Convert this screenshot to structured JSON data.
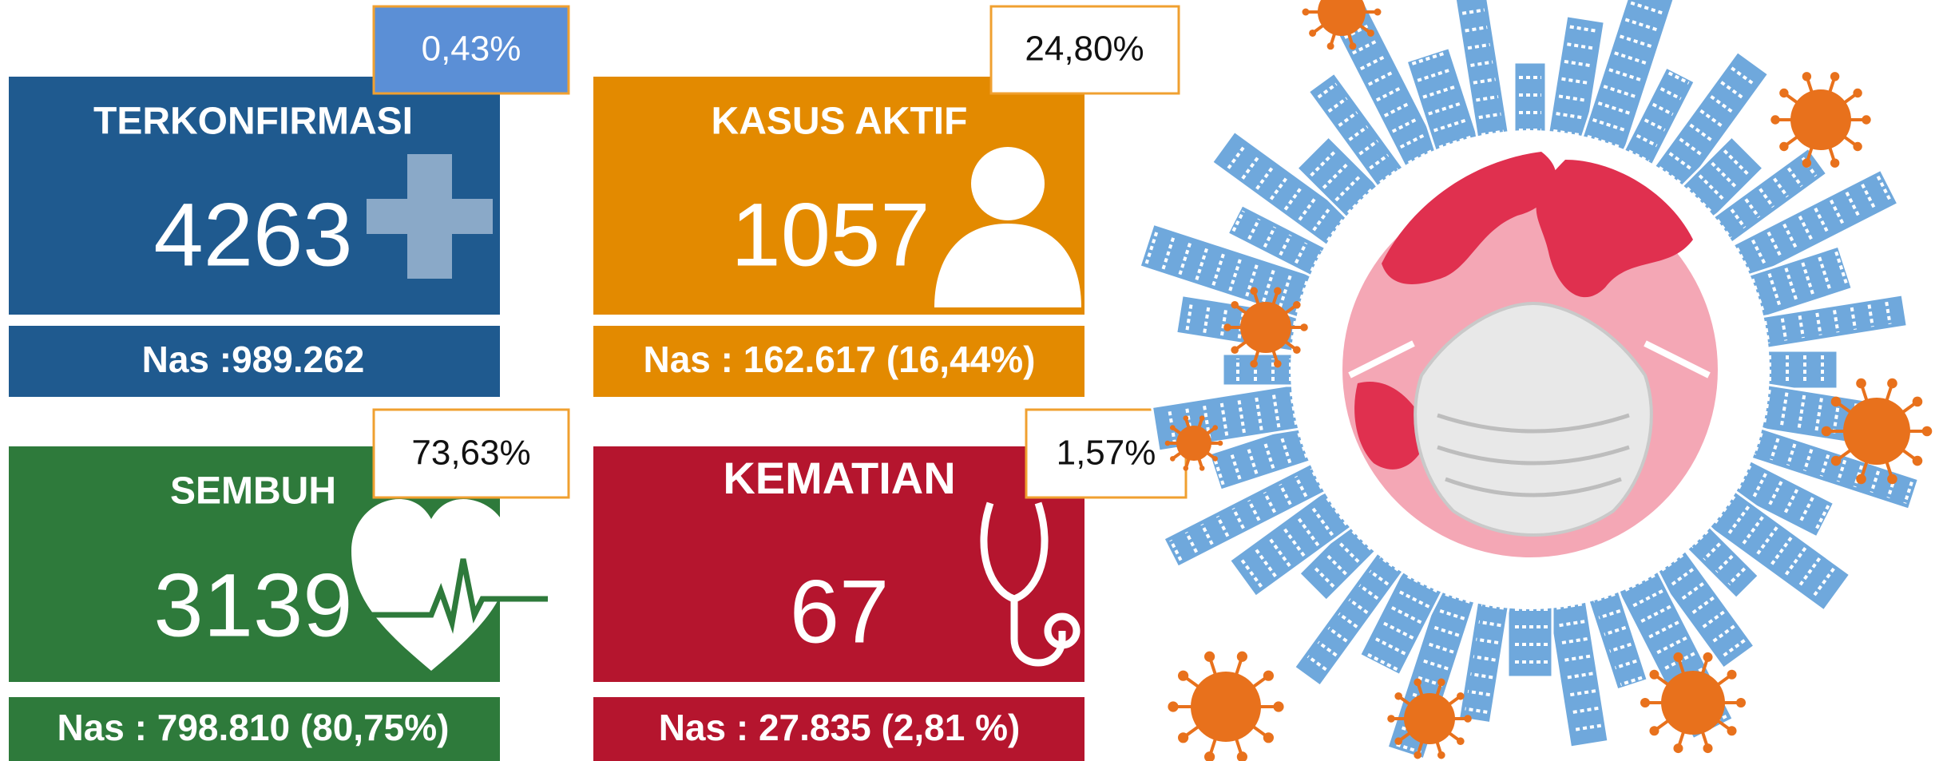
{
  "cards": [
    {
      "title": "TERKONFIRMASI",
      "value": "4263",
      "badge": "0,43%",
      "national": "Nas :989.262"
    },
    {
      "title": "KASUS AKTIF",
      "value": "1057",
      "badge": "24,80%",
      "national": "Nas : 162.617 (16,44%)"
    },
    {
      "title": "SEMBUH",
      "value": "3139",
      "badge": "73,63%",
      "national": "Nas : 798.810 (80,75%)"
    },
    {
      "title": "KEMATIAN",
      "value": "67",
      "badge": "1,57%",
      "national": "Nas : 27.835 (2,81 %)"
    }
  ]
}
